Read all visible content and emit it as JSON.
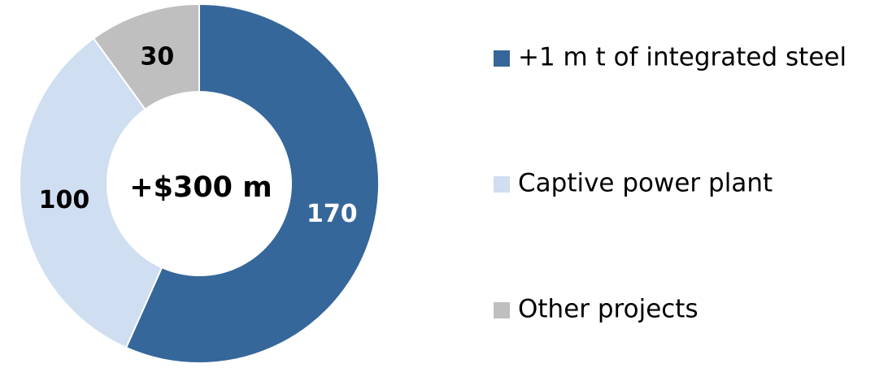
{
  "chart_data": {
    "type": "donut",
    "center_label": "+$300 m",
    "categories": [
      "+1 m t of integrated steel",
      "Captive power plant",
      "Other projects"
    ],
    "values": [
      170,
      100,
      30
    ],
    "colors": [
      "#35679a",
      "#cfdef0",
      "#bfbfbf"
    ],
    "legend": "right"
  }
}
